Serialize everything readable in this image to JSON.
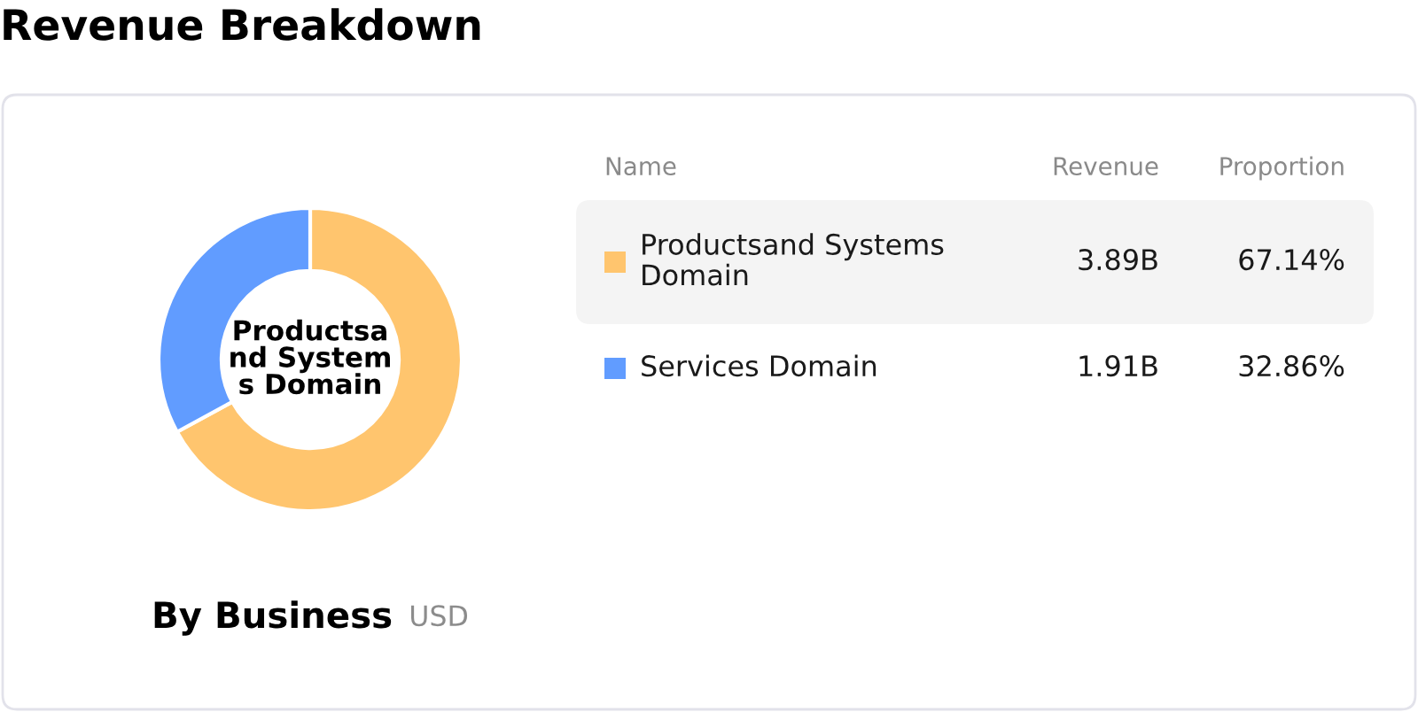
{
  "chart_data": {
    "type": "donut",
    "title": "Revenue Breakdown",
    "subtitle": "By Business",
    "legend_title": "Name",
    "categories": [
      "Productsand Systems Domain",
      "Services Domain"
    ],
    "values": [
      3.89,
      1.91
    ],
    "value_labels": [
      "3.89B",
      "1.91B"
    ],
    "colors": [
      "#ffc56e",
      "#619cff"
    ],
    "legend": "right",
    "annotations": [
      "USD",
      "Revenue",
      "Proportion",
      "67.14%",
      "32.86%",
      "Productsa\nnd System\ns Domain"
    ]
  }
}
